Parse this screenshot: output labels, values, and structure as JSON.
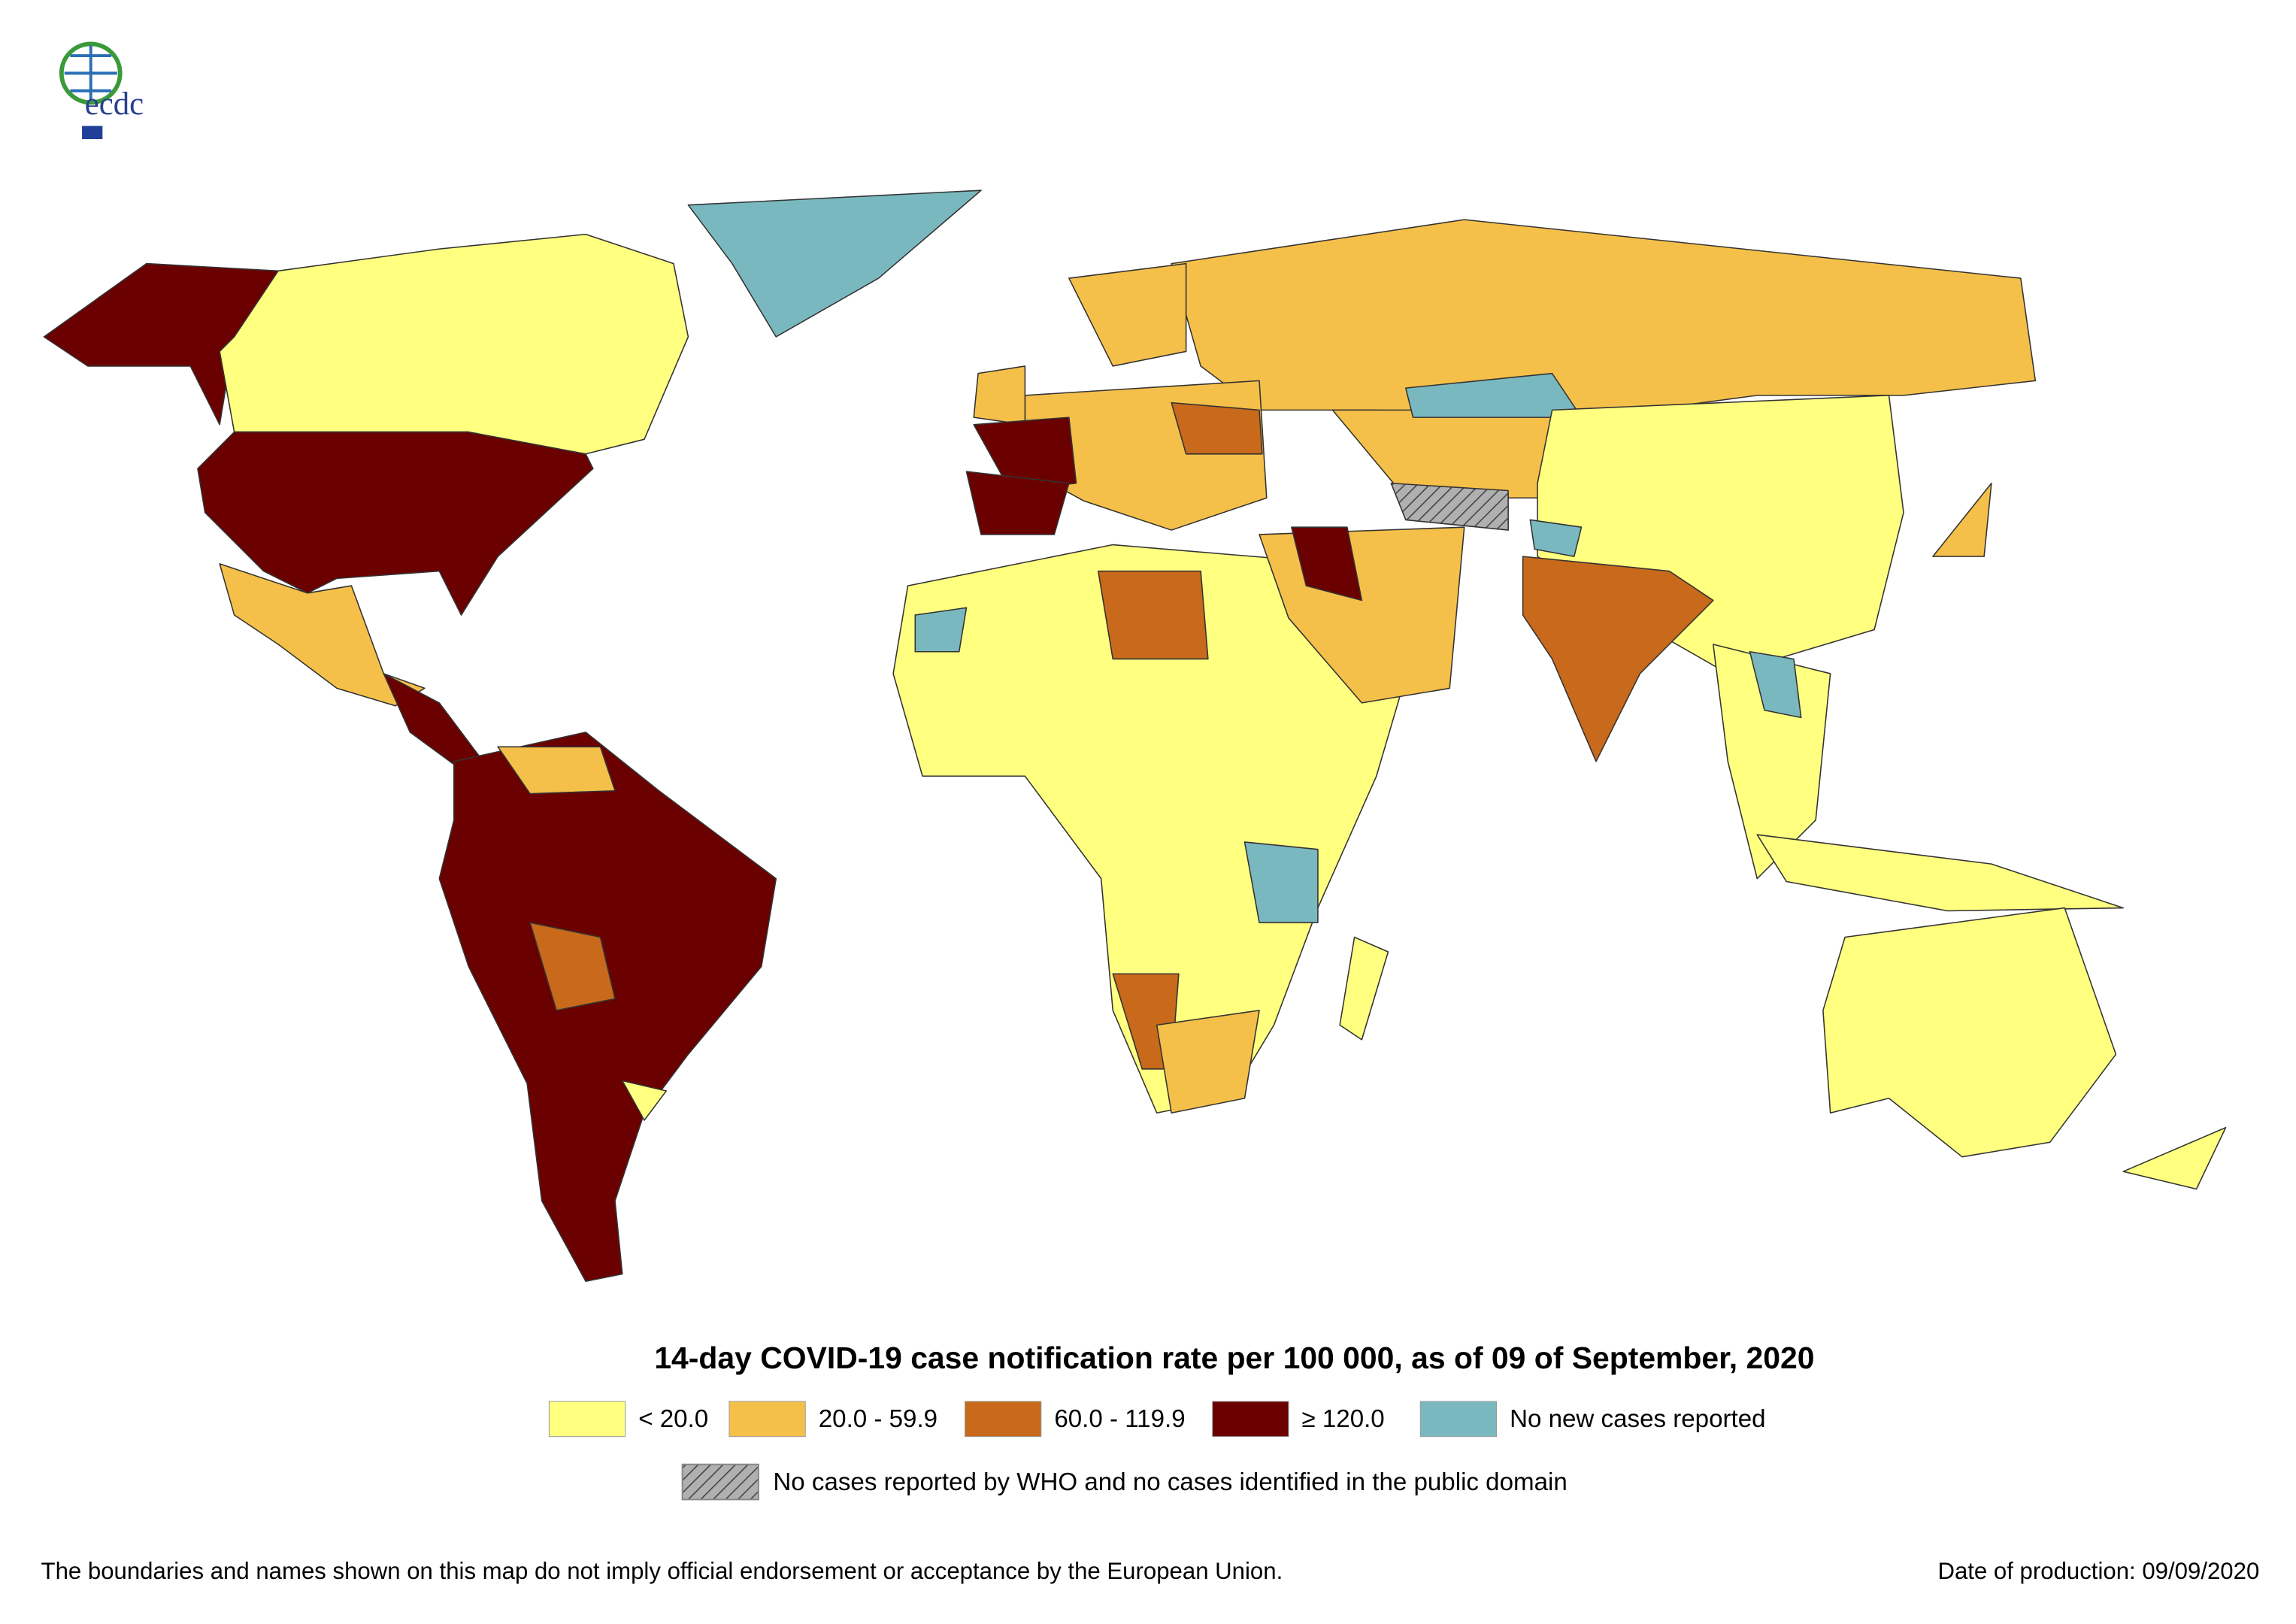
{
  "header": {
    "logo": "ecdc"
  },
  "map": {
    "title": "14-day COVID-19 case notification rate per 100 000, as of 09 of September, 2020",
    "legend": [
      {
        "label": "< 20.0",
        "color": "#ffff80"
      },
      {
        "label": "20.0 - 59.9",
        "color": "#f5c04a"
      },
      {
        "label": "60.0 - 119.9",
        "color": "#c8691b"
      },
      {
        "label": "≥ 120.0",
        "color": "#6b0000"
      },
      {
        "label": "No new cases reported",
        "color": "#7ab8c0"
      }
    ],
    "no_data": {
      "label": "No cases reported by WHO and no cases identified in the public domain",
      "color": "#b0b0b0"
    }
  },
  "footer": {
    "disclaimer": "The boundaries and names shown on this map do not imply official endorsement or acceptance by the European Union.",
    "date": "Date of production: 09/09/2020"
  }
}
